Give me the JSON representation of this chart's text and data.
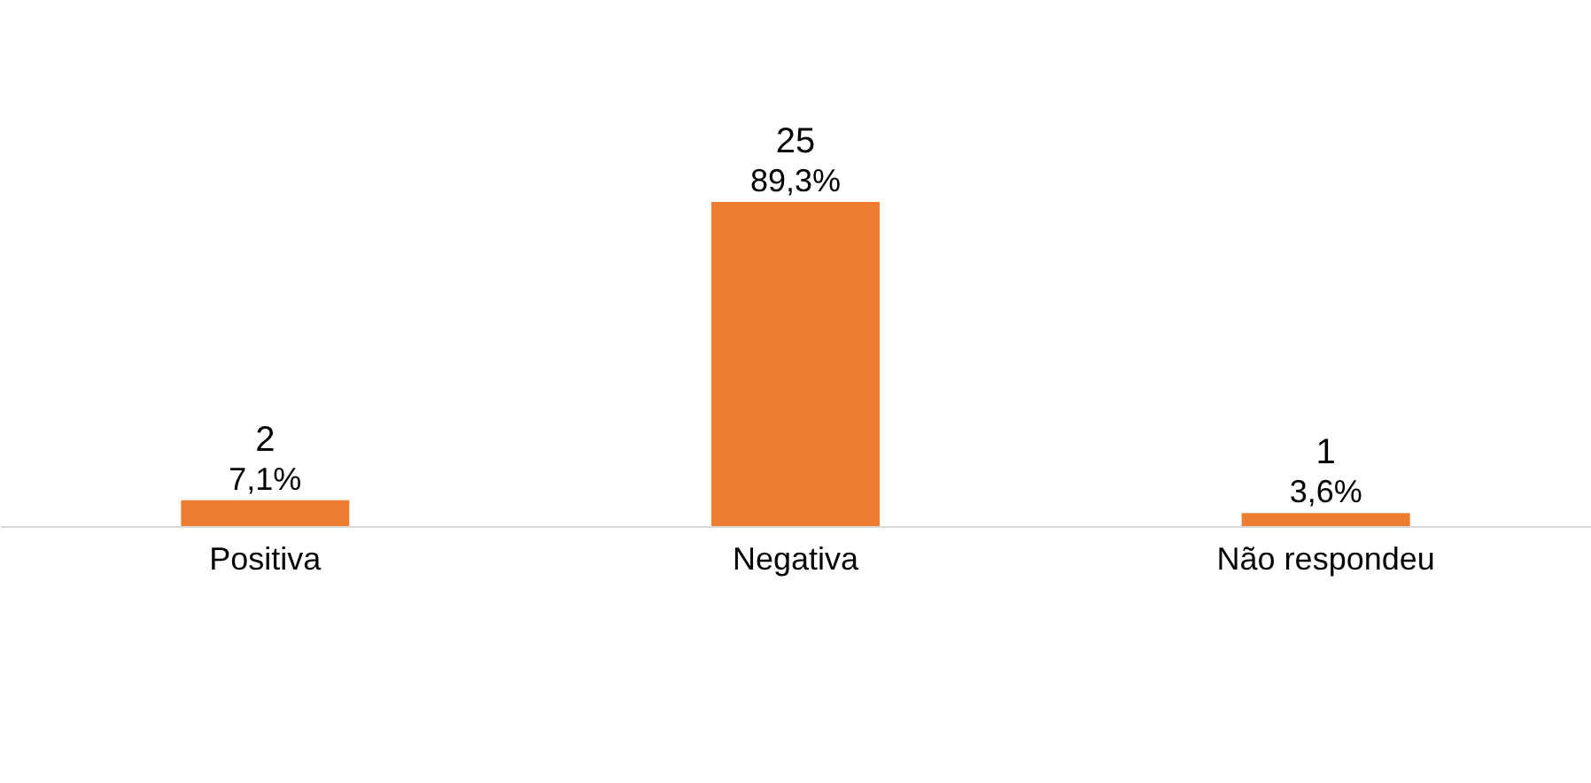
{
  "chart_data": {
    "type": "bar",
    "categories": [
      "Positiva",
      "Negativa",
      "Não respondeu"
    ],
    "values": [
      2,
      25,
      1
    ],
    "color": "#ed7d31",
    "data_labels": true,
    "annotations": [
      {
        "text": "7,1%",
        "x": "Positiva",
        "y": 2
      },
      {
        "text": "89,3%",
        "x": "Negativa",
        "y": 25
      },
      {
        "text": "3,6%",
        "x": "Não respondeu",
        "y": 1
      }
    ],
    "grid": false
  }
}
